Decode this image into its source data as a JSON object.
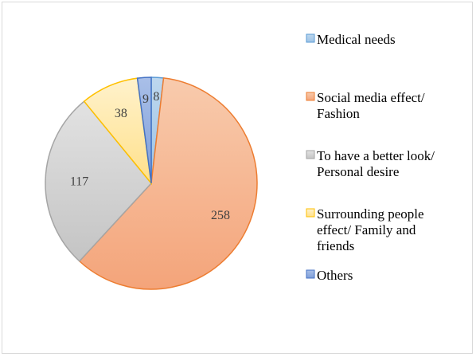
{
  "chart_data": {
    "type": "pie",
    "title": "",
    "slices": [
      {
        "label": "Medical needs",
        "value": 8,
        "color": "#9dc3e6",
        "stroke": "#5b9bd5"
      },
      {
        "label": "Social media effect/ Fashion",
        "value": 258,
        "color": "#f4b183",
        "stroke": "#ed7d31"
      },
      {
        "label": "To have a better look/ Personal desire",
        "value": 117,
        "color": "#d0d0d0",
        "stroke": "#a5a5a5"
      },
      {
        "label": "Surrounding people effect/ Family and friends",
        "value": 38,
        "color": "#ffe699",
        "stroke": "#ffc000"
      },
      {
        "label": "Others",
        "value": 9,
        "color": "#8faadc",
        "stroke": "#4472c4"
      }
    ],
    "legend_position": "right",
    "legend": [
      {
        "lines": [
          "Medical needs"
        ]
      },
      {
        "lines": [
          "Social media effect/",
          "Fashion"
        ]
      },
      {
        "lines": [
          "To have a better look/",
          "Personal desire"
        ]
      },
      {
        "lines": [
          "Surrounding people",
          "effect/ Family and",
          "friends"
        ]
      },
      {
        "lines": [
          "Others"
        ]
      }
    ]
  }
}
